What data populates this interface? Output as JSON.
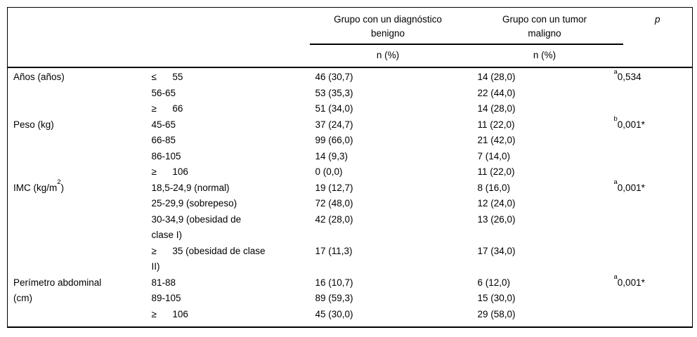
{
  "table": {
    "header": {
      "benign_group": "Grupo con un diagnóstico\nbenigno",
      "malign_group": "Grupo con un tumor\nmaligno",
      "p": "p",
      "benign_sub": "n (%)",
      "malign_sub": "n (%)"
    },
    "groups": [
      {
        "variable": {
          "text": "Años (años)",
          "sup": "",
          "after": ""
        },
        "rows": [
          {
            "category": "≤      55",
            "benign": "46 (30,7)",
            "malign": "14 (28,0)",
            "p_sup": "a",
            "p_value": "0,534"
          },
          {
            "category": "56-65",
            "benign": "53 (35,3)",
            "malign": "22 (44,0)",
            "p_sup": "",
            "p_value": ""
          },
          {
            "category": "≥      66",
            "benign": "51 (34,0)",
            "malign": "14 (28,0)",
            "p_sup": "",
            "p_value": ""
          }
        ]
      },
      {
        "variable": {
          "text": "Peso (kg)",
          "sup": "",
          "after": ""
        },
        "rows": [
          {
            "category": "45-65",
            "benign": "37 (24,7)",
            "malign": "11 (22,0)",
            "p_sup": "b",
            "p_value": "0,001*"
          },
          {
            "category": "66-85",
            "benign": "99 (66,0)",
            "malign": "21 (42,0)",
            "p_sup": "",
            "p_value": ""
          },
          {
            "category": "86-105",
            "benign": "14 (9,3)",
            "malign": "7 (14,0)",
            "p_sup": "",
            "p_value": ""
          },
          {
            "category": "≥      106",
            "benign": "0 (0,0)",
            "malign": "11 (22,0)",
            "p_sup": "",
            "p_value": ""
          }
        ]
      },
      {
        "variable": {
          "text": "IMC (kg/m",
          "sup": "2",
          "after": ")"
        },
        "rows": [
          {
            "category": "18,5-24,9 (normal)",
            "benign": "19 (12,7)",
            "malign": "8 (16,0)",
            "p_sup": "a",
            "p_value": "0,001*"
          },
          {
            "category": "25-29,9 (sobrepeso)",
            "benign": "72 (48,0)",
            "malign": "12 (24,0)",
            "p_sup": "",
            "p_value": ""
          },
          {
            "category": "30-34,9 (obesidad de\nclase I)",
            "benign": "42 (28,0)",
            "malign": "13 (26,0)",
            "p_sup": "",
            "p_value": ""
          },
          {
            "category": "≥      35 (obesidad de clase\nII)",
            "benign": "17 (11,3)",
            "malign": "17 (34,0)",
            "p_sup": "",
            "p_value": ""
          }
        ]
      },
      {
        "variable": {
          "text": "Perímetro abdominal\n(cm)",
          "sup": "",
          "after": ""
        },
        "rows": [
          {
            "category": "81-88",
            "benign": "16 (10,7)",
            "malign": "6 (12,0)",
            "p_sup": "a",
            "p_value": "0,001*"
          },
          {
            "category": "89-105",
            "benign": "89 (59,3)",
            "malign": "15 (30,0)",
            "p_sup": "",
            "p_value": ""
          },
          {
            "category": "≥      106",
            "benign": "45 (30,0)",
            "malign": "29 (58,0)",
            "p_sup": "",
            "p_value": ""
          }
        ]
      }
    ]
  },
  "colors": {
    "border": "#000000",
    "text": "#000000",
    "background": "#ffffff"
  }
}
